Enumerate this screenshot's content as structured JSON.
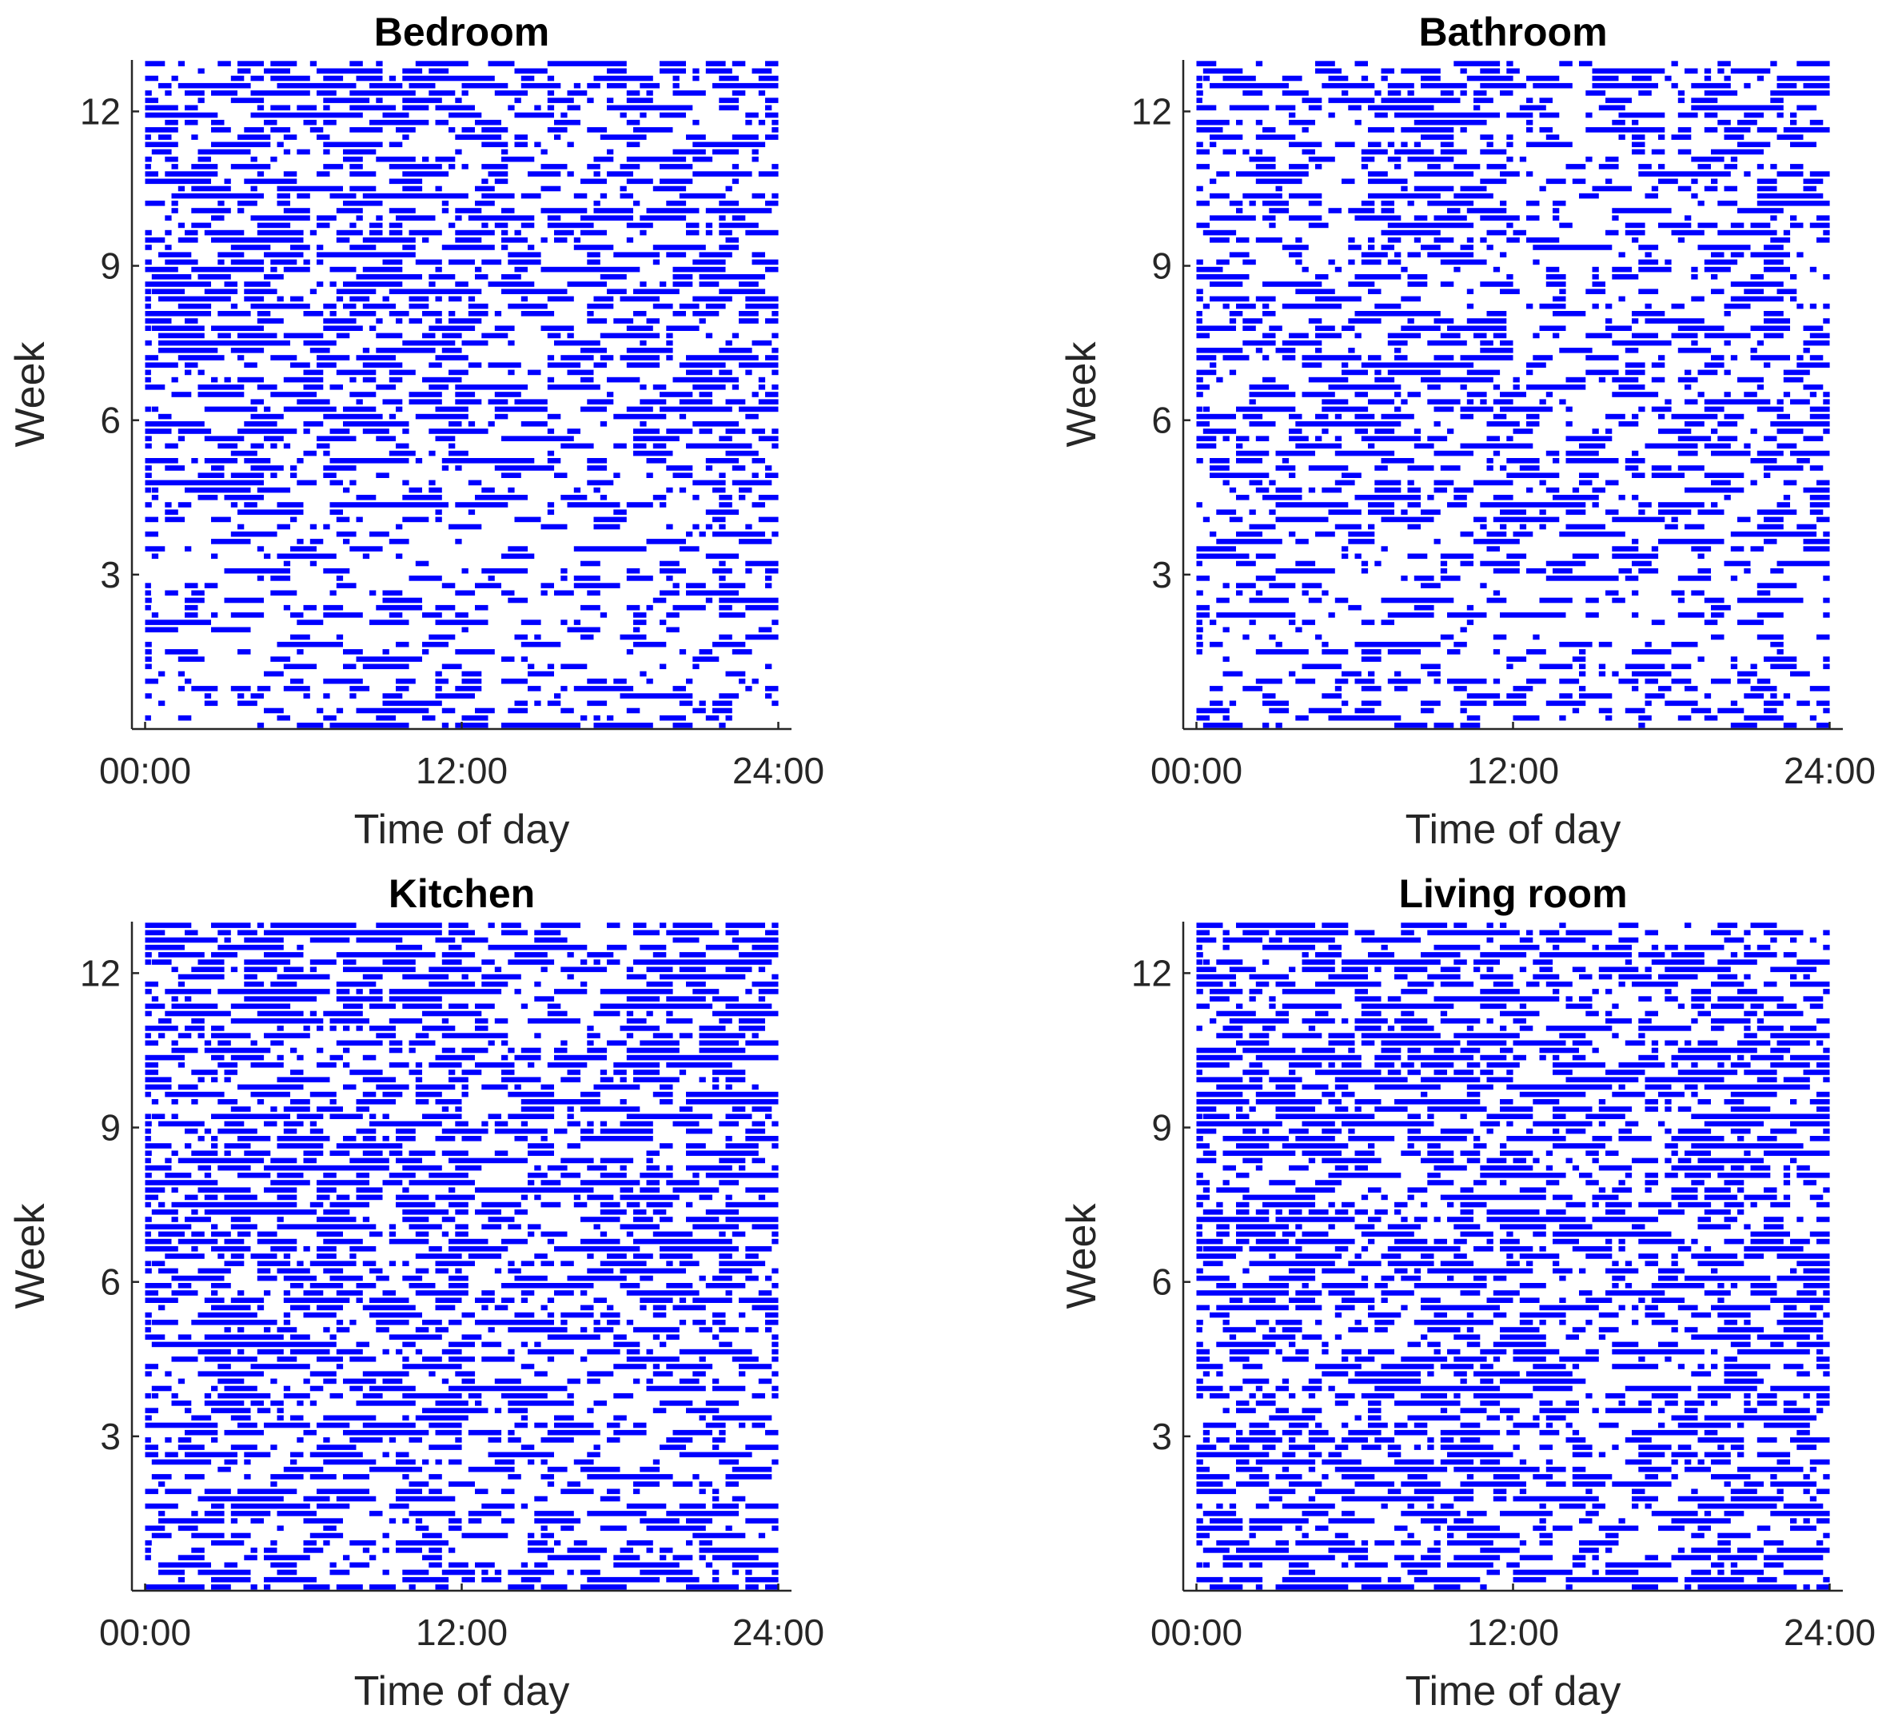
{
  "chart_data": [
    {
      "type": "scatter",
      "title": "Bedroom",
      "xlabel": "Time of day",
      "ylabel": "Week",
      "xticks": [
        "00:00",
        "12:00",
        "24:00"
      ],
      "xtick_values": [
        0,
        12,
        24
      ],
      "yticks": [
        3,
        6,
        9,
        12
      ],
      "xlim": [
        -0.5,
        24.5
      ],
      "ylim": [
        0,
        13
      ],
      "marker_color": "#0000FF",
      "grid": false,
      "density": [
        0.35,
        0.3,
        0.35,
        0.3,
        0.35,
        0.45,
        0.5,
        0.5,
        0.55,
        0.55,
        0.5,
        0.55,
        0.6
      ]
    },
    {
      "type": "scatter",
      "title": "Bathroom",
      "xlabel": "Time of day",
      "ylabel": "Week",
      "xticks": [
        "00:00",
        "12:00",
        "24:00"
      ],
      "xtick_values": [
        0,
        12,
        24
      ],
      "yticks": [
        3,
        6,
        9,
        12
      ],
      "xlim": [
        -0.5,
        24.5
      ],
      "ylim": [
        0,
        13
      ],
      "marker_color": "#0000FF",
      "grid": false,
      "density": [
        0.4,
        0.3,
        0.3,
        0.35,
        0.4,
        0.45,
        0.5,
        0.5,
        0.45,
        0.45,
        0.45,
        0.45,
        0.5
      ]
    },
    {
      "type": "scatter",
      "title": "Kitchen",
      "xlabel": "Time of day",
      "ylabel": "Week",
      "xticks": [
        "00:00",
        "12:00",
        "24:00"
      ],
      "xtick_values": [
        0,
        12,
        24
      ],
      "yticks": [
        3,
        6,
        9,
        12
      ],
      "xlim": [
        -0.5,
        24.5
      ],
      "ylim": [
        0,
        13
      ],
      "marker_color": "#0000FF",
      "grid": false,
      "density": [
        0.55,
        0.45,
        0.45,
        0.5,
        0.5,
        0.6,
        0.65,
        0.65,
        0.65,
        0.65,
        0.65,
        0.65,
        0.65
      ]
    },
    {
      "type": "scatter",
      "title": "Living room",
      "xlabel": "Time of day",
      "ylabel": "Week",
      "xticks": [
        "00:00",
        "12:00",
        "24:00"
      ],
      "xtick_values": [
        0,
        12,
        24
      ],
      "yticks": [
        3,
        6,
        9,
        12
      ],
      "xlim": [
        -0.5,
        24.5
      ],
      "ylim": [
        0,
        13
      ],
      "marker_color": "#0000FF",
      "grid": false,
      "density": [
        0.55,
        0.5,
        0.55,
        0.55,
        0.55,
        0.6,
        0.6,
        0.6,
        0.65,
        0.65,
        0.6,
        0.6,
        0.65
      ]
    }
  ]
}
